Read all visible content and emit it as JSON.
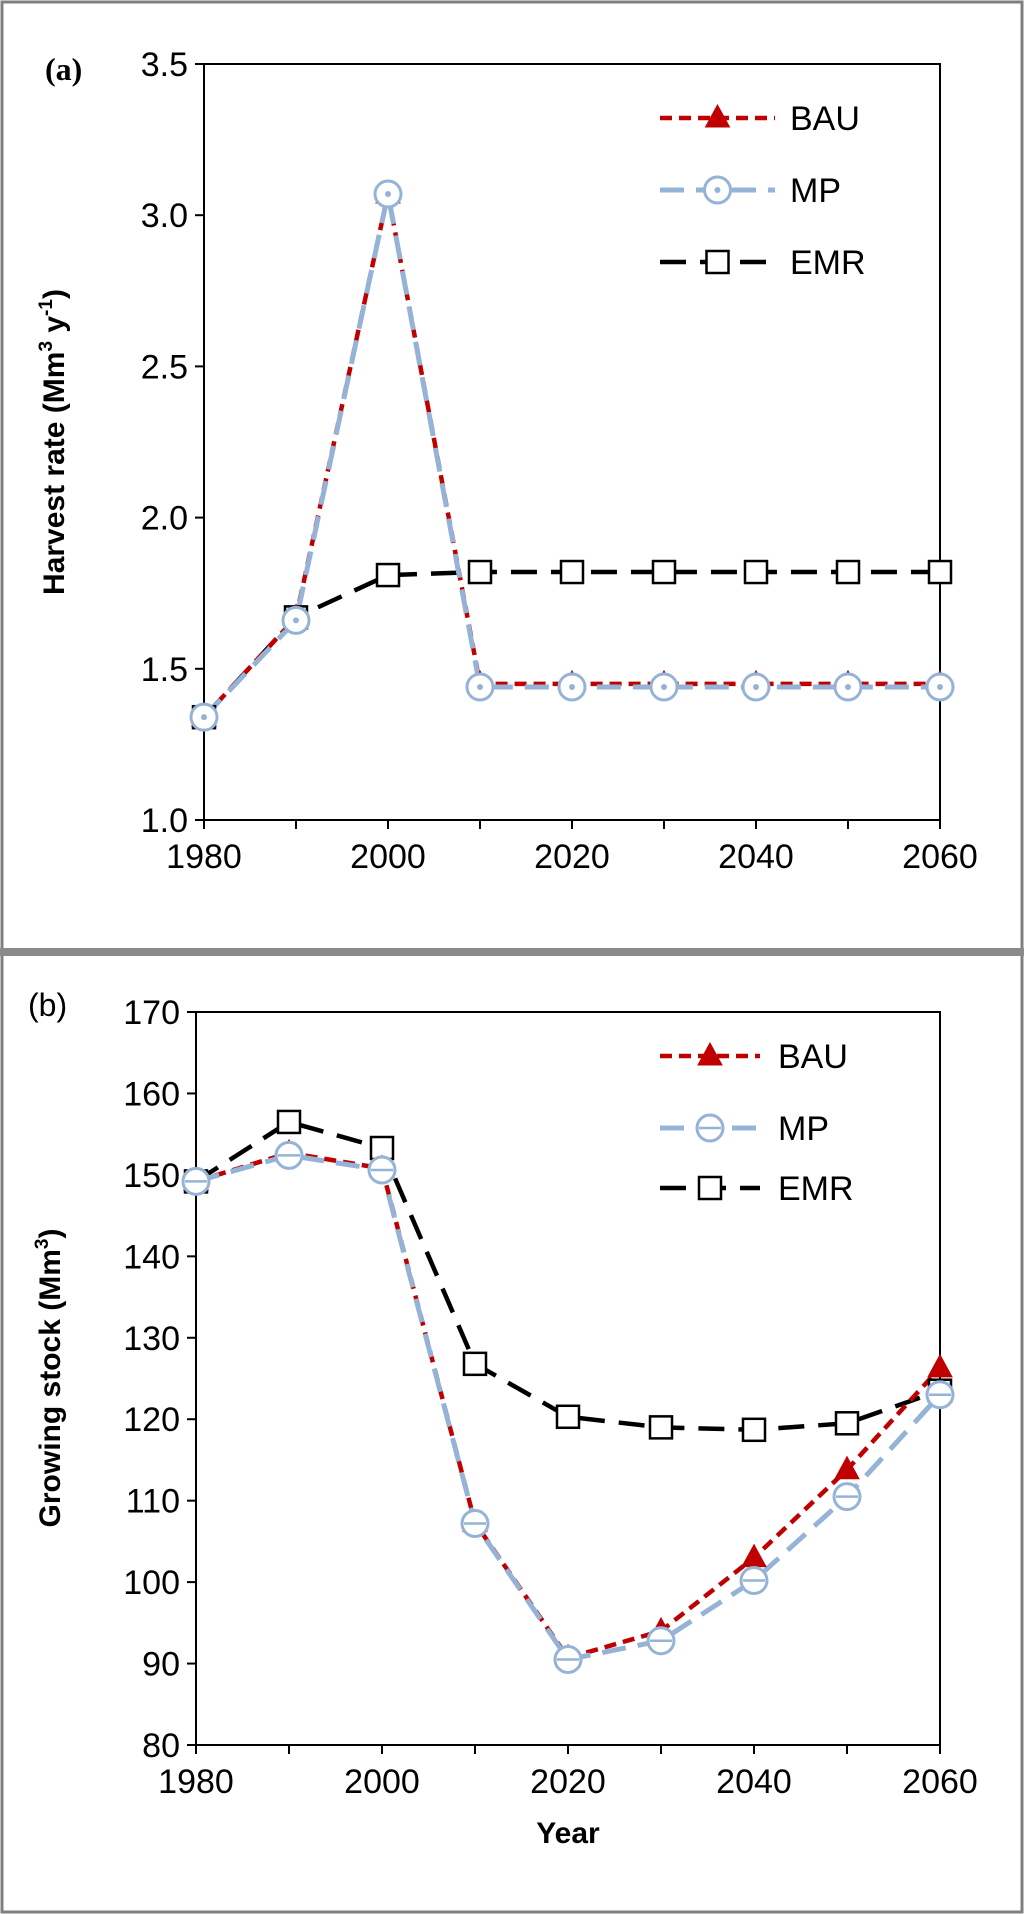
{
  "chart_data": [
    {
      "type": "line",
      "panel_label": "(a)",
      "ylabel": "Harvest rate (Mm³ y⁻¹)",
      "ylabel_parts": {
        "main": "Harvest rate (Mm",
        "sup1": "3",
        "mid": " y",
        "sup2": "-1",
        "end": ")"
      },
      "xlabel": "",
      "xlim": [
        1980,
        2060
      ],
      "ylim": [
        1.0,
        3.5
      ],
      "x_ticks": [
        1980,
        2000,
        2020,
        2040,
        2060
      ],
      "x_tick_labels": [
        "1980",
        "2000",
        "2020",
        "2040",
        "2060"
      ],
      "y_ticks": [
        1.0,
        1.5,
        2.0,
        2.5,
        3.0,
        3.5
      ],
      "y_tick_labels": [
        "1.0",
        "1.5",
        "2.0",
        "2.5",
        "3.0",
        "3.5"
      ],
      "x": [
        1980,
        1990,
        2000,
        2010,
        2020,
        2030,
        2040,
        2050,
        2060
      ],
      "series": [
        {
          "name": "BAU",
          "color": "#c00000",
          "marker": "triangle",
          "values": [
            1.34,
            1.67,
            3.07,
            1.45,
            1.45,
            1.45,
            1.45,
            1.45,
            1.45
          ]
        },
        {
          "name": "MP",
          "color": "#95b3d7",
          "marker": "circle-dot",
          "values": [
            1.34,
            1.66,
            3.07,
            1.44,
            1.44,
            1.44,
            1.44,
            1.44,
            1.44
          ]
        },
        {
          "name": "EMR",
          "color": "#000000",
          "marker": "square",
          "values": [
            1.34,
            1.67,
            1.81,
            1.82,
            1.82,
            1.82,
            1.82,
            1.82,
            1.82
          ]
        }
      ],
      "legend_position": "top-right",
      "grid": false
    },
    {
      "type": "line",
      "panel_label": "(b)",
      "ylabel": "Growing stock (Mm³)",
      "ylabel_parts": {
        "main": "Growing stock (Mm",
        "sup1": "3",
        "end": ")"
      },
      "xlabel": "Year",
      "xlim": [
        1980,
        2060
      ],
      "ylim": [
        80,
        170
      ],
      "x_ticks": [
        1980,
        2000,
        2020,
        2040,
        2060
      ],
      "x_tick_labels": [
        "1980",
        "2000",
        "2020",
        "2040",
        "2060"
      ],
      "y_ticks": [
        80,
        90,
        100,
        110,
        120,
        130,
        140,
        150,
        160,
        170
      ],
      "y_tick_labels": [
        "80",
        "90",
        "100",
        "110",
        "120",
        "130",
        "140",
        "150",
        "160",
        "170"
      ],
      "x": [
        1980,
        1990,
        2000,
        2010,
        2020,
        2030,
        2040,
        2050,
        2060
      ],
      "series": [
        {
          "name": "BAU",
          "color": "#c00000",
          "marker": "triangle",
          "values": [
            149.2,
            152.7,
            150.8,
            107.3,
            90.7,
            94.0,
            103.0,
            113.8,
            126.3
          ]
        },
        {
          "name": "MP",
          "color": "#95b3d7",
          "marker": "circle-line",
          "values": [
            149.2,
            152.4,
            150.6,
            107.2,
            90.5,
            92.8,
            100.2,
            110.5,
            123.0
          ]
        },
        {
          "name": "EMR",
          "color": "#000000",
          "marker": "square",
          "values": [
            149.2,
            156.5,
            153.3,
            126.8,
            120.3,
            119.0,
            118.7,
            119.5,
            123.5
          ]
        }
      ],
      "legend_position": "top-right",
      "grid": false
    }
  ]
}
